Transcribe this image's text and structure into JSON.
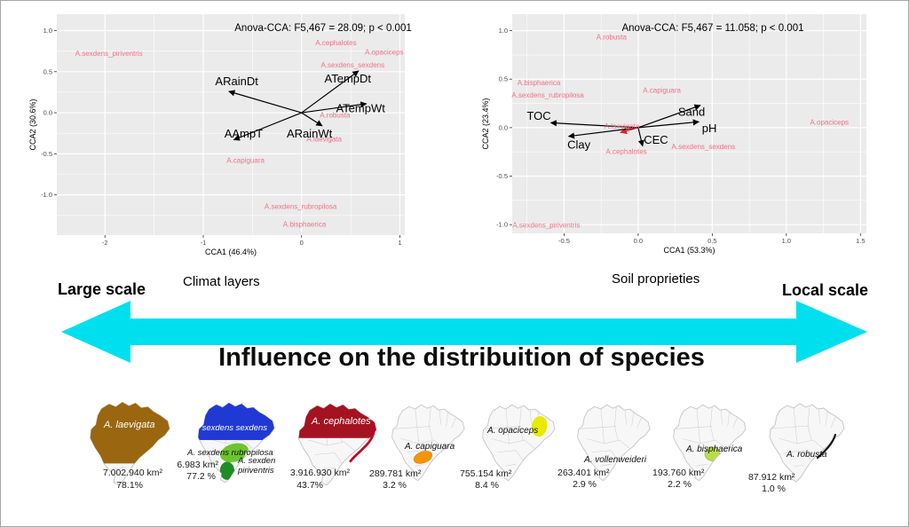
{
  "chart_data": [
    {
      "type": "scatter",
      "subtype": "cca_biplot",
      "title": "Anova-CCA: F5,467 = 28.09; p < 0.001",
      "xlabel": "CCA1 (46.4%)",
      "ylabel": "CCA2 (30.6%)",
      "xlim": [
        -2.49,
        1.05
      ],
      "ylim": [
        -1.49,
        1.2
      ],
      "xticks": [
        -2,
        -1,
        0,
        1
      ],
      "xtick_labels": [
        "-2",
        "-1",
        "0",
        "1"
      ],
      "yticks": [
        1.0,
        0.5,
        0.0,
        -0.5,
        -1.0
      ],
      "ytick_labels": [
        "1.0",
        "0.5",
        "0.0",
        "-0.5",
        "-1.0"
      ],
      "grid": true,
      "panel_color": "#ebebeb",
      "species_color": "#ef7289",
      "species": [
        {
          "label": "A.sexdens_piriventris",
          "x": -1.96,
          "y": 0.69
        },
        {
          "label": "A.cephalotes",
          "x": 0.35,
          "y": 0.82
        },
        {
          "label": "A.opaciceps",
          "x": 0.84,
          "y": 0.71
        },
        {
          "label": "A.sexdens_sexdens",
          "x": 0.52,
          "y": 0.55
        },
        {
          "label": "A.robusta",
          "x": 0.34,
          "y": -0.06
        },
        {
          "label": "A.laevigata",
          "x": 0.23,
          "y": -0.35
        },
        {
          "label": "A.capiguara",
          "x": -0.57,
          "y": -0.61
        },
        {
          "label": "A.sexdens_rubropilosa",
          "x": -0.01,
          "y": -1.17
        },
        {
          "label": "A.bisphaerica",
          "x": 0.03,
          "y": -1.39
        }
      ],
      "arrows": [
        {
          "label": "ARainDt",
          "x": -0.74,
          "y": 0.26,
          "lx": -0.66,
          "ly": 0.38
        },
        {
          "label": "ATempDt",
          "x": 0.58,
          "y": 0.51,
          "lx": 0.47,
          "ly": 0.41
        },
        {
          "label": "ATempWt",
          "x": 0.66,
          "y": 0.11,
          "lx": 0.6,
          "ly": 0.05
        },
        {
          "label": "ARainWt",
          "x": 0.21,
          "y": -0.16,
          "lx": 0.08,
          "ly": -0.26
        },
        {
          "label": "AAmpT",
          "x": -0.69,
          "y": -0.33,
          "lx": -0.59,
          "ly": -0.26
        }
      ]
    },
    {
      "type": "scatter",
      "subtype": "cca_biplot",
      "title": "Anova-CCA: F5,467 = 11.058; p < 0.001",
      "xlabel": "CCA1 (53.3%)",
      "ylabel": "CCA2 (23.4%)",
      "xlim": [
        -0.85,
        1.54
      ],
      "ylim": [
        -1.09,
        1.17
      ],
      "xticks": [
        -0.5,
        0.0,
        0.5,
        1.0,
        1.5
      ],
      "xtick_labels": [
        "-0.5",
        "0.0",
        "0.5",
        "1.0",
        "1.5"
      ],
      "yticks": [
        1.0,
        0.5,
        0.0,
        -0.5,
        -1.0
      ],
      "ytick_labels": [
        "1.0",
        "0.5",
        "0.0",
        "-0.5",
        "-1.0"
      ],
      "grid": true,
      "panel_color": "#ebebeb",
      "species_color": "#ef7289",
      "species": [
        {
          "label": "A.robusta",
          "x": -0.18,
          "y": 0.91
        },
        {
          "label": "A.bisphaerica",
          "x": -0.67,
          "y": 0.44
        },
        {
          "label": "A.sexdens_rubropilosa",
          "x": -0.61,
          "y": 0.31
        },
        {
          "label": "A.capiguara",
          "x": 0.16,
          "y": 0.36
        },
        {
          "label": "A.opaciceps",
          "x": 1.29,
          "y": 0.03
        },
        {
          "label": "A.laevigata",
          "x": -0.11,
          "y": -0.01
        },
        {
          "label": "A.sexdens_sexdens",
          "x": 0.44,
          "y": -0.22
        },
        {
          "label": "A.cephalotes",
          "x": -0.08,
          "y": -0.27
        },
        {
          "label": "A.sexdens_piriventris",
          "x": -0.62,
          "y": -1.03
        }
      ],
      "arrows": [
        {
          "label": "TOC",
          "x": -0.59,
          "y": 0.05,
          "lx": -0.67,
          "ly": 0.12
        },
        {
          "label": "Clay",
          "x": -0.47,
          "y": -0.09,
          "lx": -0.4,
          "ly": -0.18
        },
        {
          "label": "Sand",
          "x": 0.42,
          "y": 0.23,
          "lx": 0.36,
          "ly": 0.16
        },
        {
          "label": "pH",
          "x": 0.41,
          "y": 0.06,
          "lx": 0.48,
          "ly": -0.01
        },
        {
          "label": "CEC",
          "x": 0.03,
          "y": -0.19,
          "lx": 0.12,
          "ly": -0.13
        }
      ],
      "extra_arrow": {
        "color": "#e02020",
        "x": -0.12,
        "y": -0.05
      }
    }
  ],
  "middle": {
    "large_scale": "Large scale",
    "climate_caption": "Climat layers",
    "soil_caption": "Soil proprieties",
    "local_scale": "Local scale",
    "arrow_title": "Influence on the distribuition of species",
    "arrow_color": "#00dfee"
  },
  "maps": [
    {
      "id": "laevigata",
      "labels": [
        {
          "text": "A. laevigata",
          "color": "#ffffff"
        }
      ],
      "area": "7.002.940 km²",
      "percent": "78.1%",
      "colors": {
        "main": "#9a660f"
      }
    },
    {
      "id": "sexdens",
      "labels": [
        {
          "text": "A. sexdens sexdens",
          "color": "#ffffff"
        },
        {
          "text": "A. sexdens rubropilosa",
          "color": "#111111"
        },
        {
          "text": "A. sexden piriventris",
          "color": "#111111"
        }
      ],
      "area": "6.983 km²",
      "percent": "77.2 %",
      "colors": {
        "main": "#2139d4",
        "mid": "#6cc52f",
        "south": "#1f8c28"
      }
    },
    {
      "id": "cephalotes",
      "labels": [
        {
          "text": "A. cephalotes",
          "color": "#ffffff"
        }
      ],
      "area": "3.916.930 km²",
      "percent": "43.7%",
      "colors": {
        "main": "#a51222",
        "strip": "#c00020"
      }
    },
    {
      "id": "capiguara",
      "labels": [
        {
          "text": "A. capiguara",
          "color": "#111111"
        }
      ],
      "area": "289.781 km²",
      "percent": "3.2 %",
      "colors": {
        "main": "#f59500"
      }
    },
    {
      "id": "opaciceps",
      "labels": [
        {
          "text": "A. opaciceps",
          "color": "#111111"
        }
      ],
      "area": "755.154 km²",
      "percent": "8.4 %",
      "colors": {
        "main": "#e9ea00"
      }
    },
    {
      "id": "vollenweideri",
      "labels": [
        {
          "text": "A. vollenweideri",
          "color": "#111111"
        }
      ],
      "area": "263.401 km²",
      "percent": "2.9 %",
      "colors": {}
    },
    {
      "id": "bisphaerica",
      "labels": [
        {
          "text": "A. bisphaerica",
          "color": "#111111"
        }
      ],
      "area": "193.760 km²",
      "percent": "2.2 %",
      "colors": {
        "main": "#b9dc4e"
      }
    },
    {
      "id": "robusta",
      "labels": [
        {
          "text": "A. robusta",
          "color": "#111111"
        }
      ],
      "area": "87.912 km²",
      "percent": "1.0 %",
      "colors": {
        "main": "#151515"
      }
    }
  ]
}
